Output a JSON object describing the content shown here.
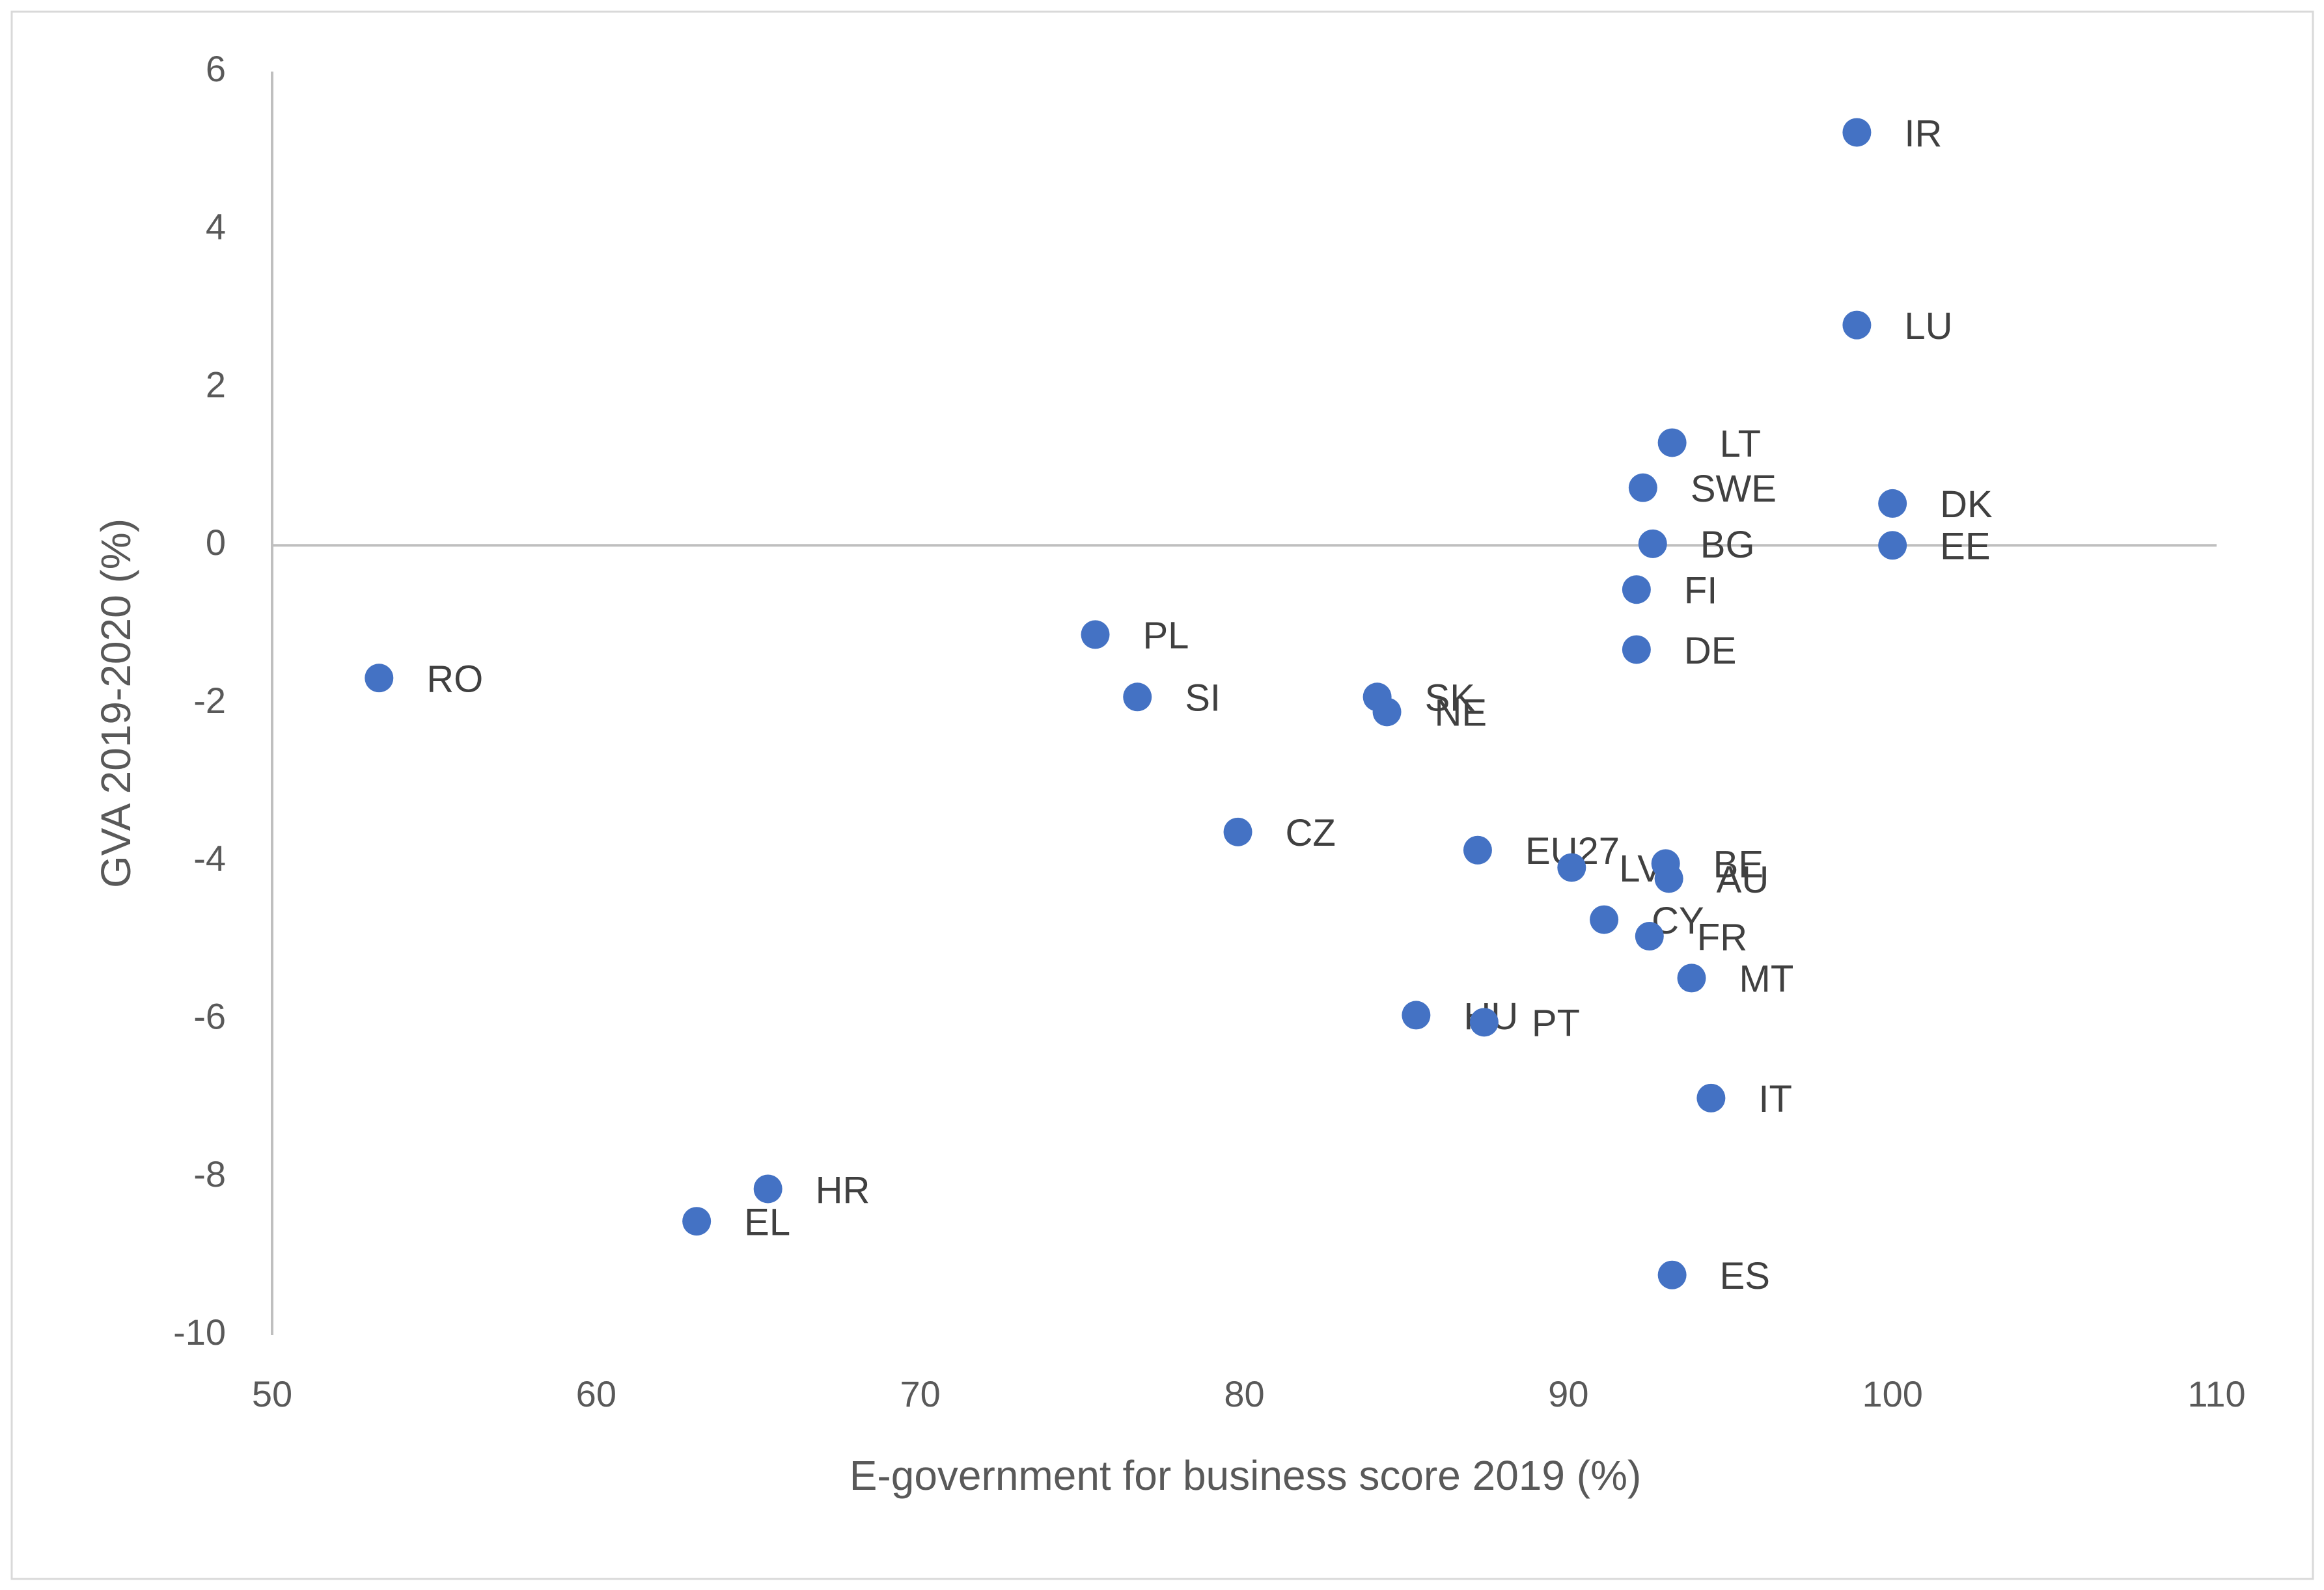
{
  "chart_data": {
    "type": "scatter",
    "xlabel": "E-government for business score 2019 (%)",
    "ylabel": "GVA 2019-2020 (%)",
    "xlim": [
      50,
      110
    ],
    "ylim": [
      -10,
      6
    ],
    "x_ticks": [
      50,
      60,
      70,
      80,
      90,
      100,
      110
    ],
    "y_ticks": [
      6,
      4,
      2,
      0,
      -2,
      -4,
      -6,
      -8,
      -10
    ],
    "grid": false,
    "legend": "none",
    "points": [
      {
        "label": "IR",
        "x": 98.9,
        "y": 5.23
      },
      {
        "label": "LU",
        "x": 98.9,
        "y": 2.79
      },
      {
        "label": "LT",
        "x": 93.2,
        "y": 1.3
      },
      {
        "label": "SWE",
        "x": 92.3,
        "y": 0.73
      },
      {
        "label": "DK",
        "x": 100.0,
        "y": 0.53
      },
      {
        "label": "BG",
        "x": 92.6,
        "y": 0.02
      },
      {
        "label": "EE",
        "x": 100.0,
        "y": 0.0
      },
      {
        "label": "FI",
        "x": 92.1,
        "y": -0.56
      },
      {
        "label": "DE",
        "x": 92.1,
        "y": -1.32
      },
      {
        "label": "PL",
        "x": 75.4,
        "y": -1.13
      },
      {
        "label": "RO",
        "x": 53.3,
        "y": -1.68
      },
      {
        "label": "SI",
        "x": 76.7,
        "y": -1.92
      },
      {
        "label": "SK",
        "x": 84.1,
        "y": -1.92
      },
      {
        "label": "NE",
        "x": 84.4,
        "y": -2.11
      },
      {
        "label": "CZ",
        "x": 79.8,
        "y": -3.63
      },
      {
        "label": "EU27",
        "x": 87.2,
        "y": -3.86
      },
      {
        "label": "LV",
        "x": 90.1,
        "y": -4.08
      },
      {
        "label": "BE",
        "x": 93.0,
        "y": -4.03
      },
      {
        "label": "AU",
        "x": 93.1,
        "y": -4.22
      },
      {
        "label": "CY",
        "x": 91.1,
        "y": -4.74
      },
      {
        "label": "FR",
        "x": 92.5,
        "y": -4.95
      },
      {
        "label": "MT",
        "x": 93.8,
        "y": -5.48
      },
      {
        "label": "HU",
        "x": 85.3,
        "y": -5.95
      },
      {
        "label": "PT",
        "x": 87.4,
        "y": -6.04
      },
      {
        "label": "IT",
        "x": 94.4,
        "y": -7.0
      },
      {
        "label": "HR",
        "x": 65.3,
        "y": -8.15
      },
      {
        "label": "EL",
        "x": 63.1,
        "y": -8.56
      },
      {
        "label": "ES",
        "x": 93.2,
        "y": -9.24
      }
    ]
  },
  "colors": {
    "marker": "#4472C4",
    "axis_line": "#BFBFBF",
    "frame": "#D9D9D9",
    "tick_text": "#595959",
    "label_text": "#404040"
  }
}
